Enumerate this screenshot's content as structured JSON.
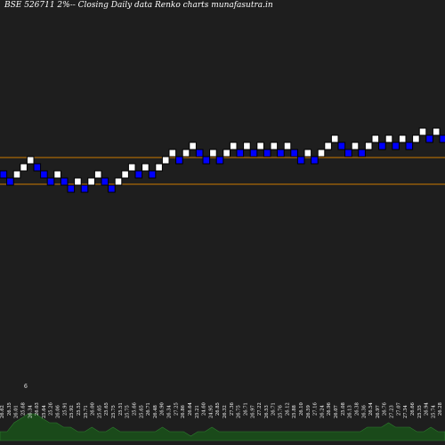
{
  "header": {
    "title": "BSE 526711 2%-- Closing Daily data Renko charts munafasutra.in"
  },
  "colors": {
    "background": "#1e1e1e",
    "up_brick": "#ffffff",
    "down_brick": "#0000ff",
    "brick_border": "#000000",
    "level_line": "#cc7a00",
    "volume_fill": "#1a4a1a",
    "volume_line": "#2e7d2e",
    "label_text": "#ffffff"
  },
  "chart_data": {
    "type": "renko",
    "title": "BSE 526711 2%-- Closing Daily data Renko charts munafasutra.in",
    "box_size_label": "2%",
    "bricks": [
      "down",
      "down",
      "up",
      "up",
      "up",
      "down",
      "down",
      "down",
      "up",
      "down",
      "down",
      "up",
      "down",
      "up",
      "up",
      "down",
      "down",
      "up",
      "up",
      "up",
      "down",
      "up",
      "down",
      "up",
      "up",
      "up",
      "down",
      "up",
      "up",
      "down",
      "down",
      "up",
      "down",
      "up",
      "up",
      "down",
      "up",
      "down",
      "up",
      "down",
      "up",
      "down",
      "up",
      "down",
      "down",
      "up",
      "down",
      "up",
      "up",
      "up",
      "down",
      "down",
      "up",
      "down",
      "up",
      "up",
      "down",
      "up",
      "down",
      "up",
      "down",
      "up",
      "up",
      "down",
      "up",
      "down",
      "up"
    ],
    "reference_levels": [
      "upper",
      "lower"
    ],
    "close_labels": [
      "26.62",
      "26.35",
      "26.01",
      "25.68",
      "26.34",
      "26.03",
      "25.64",
      "25.26",
      "26.06",
      "25.91",
      "25.92",
      "25.55",
      "25.71",
      "26.00",
      "25.05",
      "25.65",
      "25.75",
      "25.51",
      "25.75",
      "25.66",
      "25.65",
      "26.71",
      "26.48",
      "26.90",
      "26.34",
      "27.25",
      "26.86",
      "26.64",
      "25.21",
      "24.60",
      "24.95",
      "26.85",
      "26.32",
      "27.36",
      "26.75",
      "26.71",
      "26.97",
      "27.22",
      "26.53",
      "26.71",
      "25.76",
      "26.12",
      "25.88",
      "26.10",
      "26.59",
      "27.16",
      "26.24",
      "26.96",
      "26.07",
      "25.08",
      "26.13",
      "26.38",
      "26.36",
      "26.54",
      "26.97",
      "26.76",
      "27.23",
      "27.07",
      "27.34",
      "26.66",
      "25.35",
      "26.94",
      "25.74",
      "26.28"
    ],
    "volume": [
      2,
      2,
      4,
      5,
      6,
      6,
      5,
      4,
      4,
      3,
      3,
      2,
      2,
      3,
      2,
      2,
      3,
      2,
      2,
      2,
      2,
      2,
      2,
      3,
      2,
      2,
      2,
      1,
      2,
      2,
      3,
      2,
      2,
      2,
      2,
      2,
      2,
      2,
      2,
      2,
      2,
      2,
      2,
      2,
      2,
      2,
      2,
      2,
      2,
      2,
      2,
      2,
      3,
      3,
      3,
      4,
      3,
      3,
      3,
      2,
      2,
      3,
      2,
      2
    ],
    "annotations": [
      "6"
    ]
  }
}
